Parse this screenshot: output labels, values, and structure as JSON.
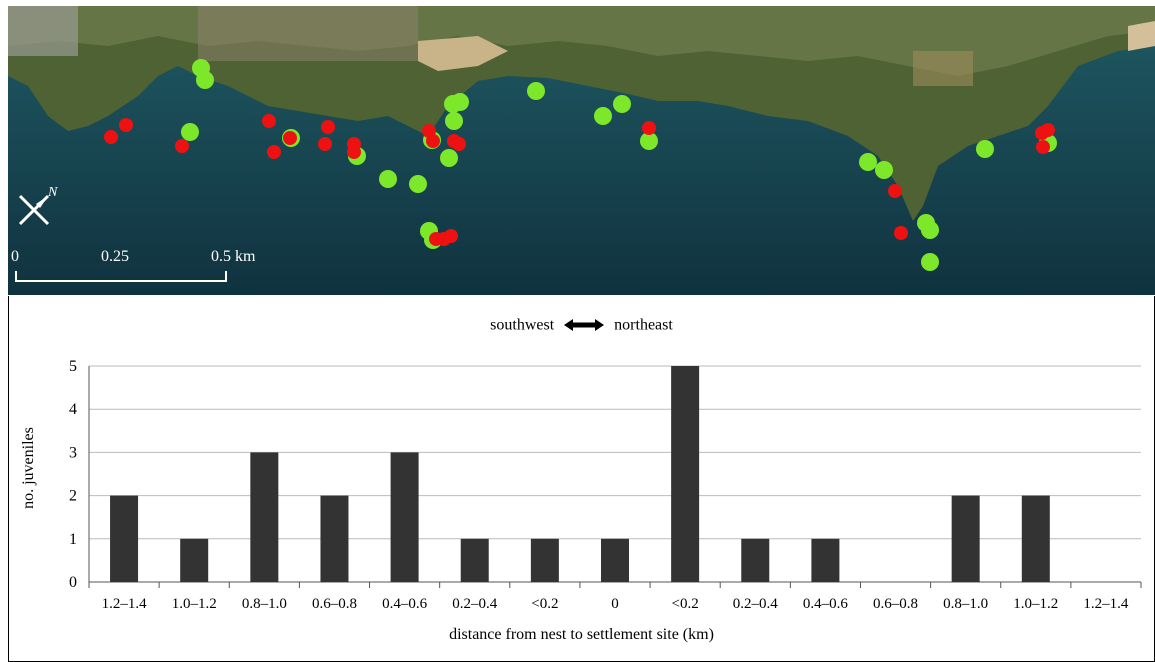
{
  "map": {
    "scale_labels": [
      "0",
      "0.25",
      "0.5 km"
    ],
    "north_label": "N",
    "colors": {
      "green_dot": "#7de82a",
      "red_dot": "#ee1111",
      "sea": "#1a4a57",
      "land": "#5a6b3a"
    },
    "icon": "compass-icon"
  },
  "chart_data": {
    "type": "bar",
    "direction_label_left": "southwest",
    "direction_label_right": "northeast",
    "categories": [
      "1.2–1.4",
      "1.0–1.2",
      "0.8–1.0",
      "0.6–0.8",
      "0.4–0.6",
      "0.2–0.4",
      "<0.2",
      "0",
      "<0.2",
      "0.2–0.4",
      "0.4–0.6",
      "0.6–0.8",
      "0.8–1.0",
      "1.0–1.2",
      "1.2–1.4"
    ],
    "values": [
      2,
      1,
      3,
      2,
      3,
      1,
      1,
      1,
      5,
      1,
      1,
      0,
      2,
      2,
      0
    ],
    "xlabel": "distance from nest to settlement site (km)",
    "ylabel": "no. juveniles",
    "ylim": [
      0,
      5
    ],
    "yticks": [
      0,
      1,
      2,
      3,
      4,
      5
    ],
    "grid": true,
    "bar_color": "#333333"
  }
}
